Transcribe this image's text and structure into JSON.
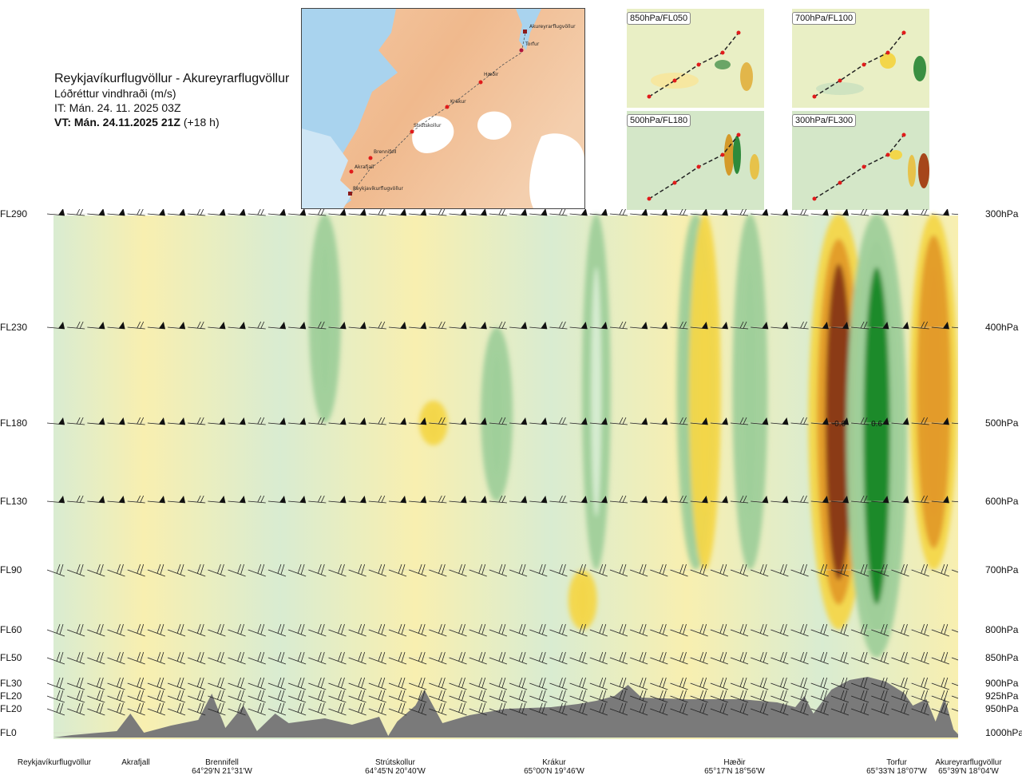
{
  "header": {
    "title": "Reykjavíkurflugvöllur - Akureyrarflugvöllur",
    "subtitle": "Lóðréttur vindhraði (m/s)",
    "issue_time": "IT: Mán. 24. 11. 2025 03Z",
    "valid_time_bold": "VT: Mán. 24.11.2025 21Z",
    "valid_time_lead": "(+18 h)"
  },
  "map": {
    "places": [
      "Akureyrarflugvöllur",
      "Torfur",
      "Hæðir",
      "Krákur",
      "Strútskollur",
      "Brennifell",
      "Akrafjall",
      "Reykjavíkurflugvöllur"
    ]
  },
  "mini_maps": [
    "850hPa/FL050",
    "700hPa/FL100",
    "500hPa/FL180",
    "300hPa/FL300"
  ],
  "colors": {
    "strong_down": "#8b3a12",
    "down": "#e39b2a",
    "weak_down": "#f3d64a",
    "near_zero_down": "#f8efb0",
    "near_zero_up": "#d6ecd0",
    "up": "#9fcf9a",
    "strong_up": "#1f8a2c",
    "terrain": "#7a7a7a"
  },
  "chart_data": {
    "type": "heatmap",
    "title": "Lóðréttur vindhraði (m/s)",
    "flight_levels": [
      {
        "fl": "FL290",
        "hpa": "300hPa"
      },
      {
        "fl": "FL230",
        "hpa": "400hPa"
      },
      {
        "fl": "FL180",
        "hpa": "500hPa"
      },
      {
        "fl": "FL130",
        "hpa": "600hPa"
      },
      {
        "fl": "FL90",
        "hpa": "700hPa"
      },
      {
        "fl": "FL60",
        "hpa": "800hPa"
      },
      {
        "fl": "FL50",
        "hpa": "850hPa"
      },
      {
        "fl": "FL30",
        "hpa": "900hPa"
      },
      {
        "fl": "FL20",
        "hpa": "925hPa"
      },
      {
        "fl": "FL20",
        "hpa": "950hPa"
      },
      {
        "fl": "FL0",
        "hpa": "1000hPa"
      }
    ],
    "waypoints": [
      {
        "name": "Reykjavíkurflugvöllur",
        "coord": ""
      },
      {
        "name": "Akrafjall",
        "coord": ""
      },
      {
        "name": "Brennifell",
        "coord": "64°29'N 21°31'W"
      },
      {
        "name": "Strútskollur",
        "coord": "64°45'N 20°40'W"
      },
      {
        "name": "Krákur",
        "coord": "65°00'N 19°46'W"
      },
      {
        "name": "Hæðir",
        "coord": "65°17'N 18°56'W"
      },
      {
        "name": "Torfur",
        "coord": "65°33'N 18°07'W"
      },
      {
        "name": "Akureyrarflugvöllur",
        "coord": "65°39'N 18°04'W"
      }
    ],
    "annotations": [
      {
        "text": "-0.6",
        "route_fraction": 0.868,
        "level": "500hPa"
      },
      {
        "text": "0.6",
        "route_fraction": 0.91,
        "level": "500hPa"
      }
    ],
    "bands": [
      {
        "route_fraction": 0.868,
        "value": -0.6,
        "top": "300hPa",
        "bottom": "800hPa"
      },
      {
        "route_fraction": 0.91,
        "value": 0.6,
        "top": "300hPa",
        "bottom": "850hPa"
      },
      {
        "route_fraction": 0.973,
        "value": -0.4,
        "top": "300hPa",
        "bottom": "700hPa"
      },
      {
        "route_fraction": 0.71,
        "value": 0.25,
        "top": "300hPa",
        "bottom": "700hPa"
      },
      {
        "route_fraction": 0.77,
        "value": 0.2,
        "top": "300hPa",
        "bottom": "700hPa"
      },
      {
        "route_fraction": 0.72,
        "value": -0.15,
        "top": "300hPa",
        "bottom": "700hPa"
      },
      {
        "route_fraction": 0.49,
        "value": 0.15,
        "top": "400hPa",
        "bottom": "600hPa"
      },
      {
        "route_fraction": 0.3,
        "value": 0.15,
        "top": "300hPa",
        "bottom": "500hPa"
      },
      {
        "route_fraction": 0.6,
        "value": 0.1,
        "top": "300hPa",
        "bottom": "700hPa"
      },
      {
        "route_fraction": 0.42,
        "value": -0.1,
        "top": "500hPa",
        "bottom": "500hPa"
      },
      {
        "route_fraction": 0.585,
        "value": -0.1,
        "top": "700hPa",
        "bottom": "800hPa"
      }
    ]
  }
}
